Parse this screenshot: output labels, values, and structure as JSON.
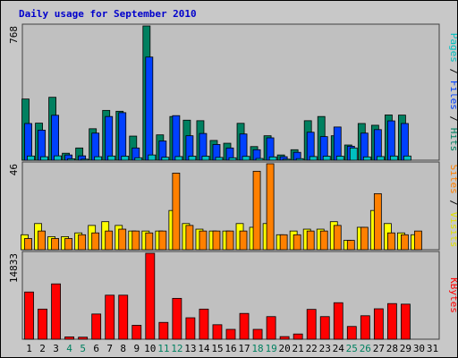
{
  "title": "Daily usage for September 2010",
  "legend": {
    "top": [
      {
        "text": "Pages",
        "color": "#00c0c0"
      },
      {
        "text": " / ",
        "color": "#000000"
      },
      {
        "text": "Files",
        "color": "#0040ff"
      },
      {
        "text": " / ",
        "color": "#000000"
      },
      {
        "text": "Hits",
        "color": "#008060"
      }
    ],
    "middle": [
      {
        "text": "Sites",
        "color": "#ff8000"
      },
      {
        "text": " / ",
        "color": "#000000"
      },
      {
        "text": "Visits",
        "color": "#e0e000"
      }
    ],
    "bottom": [
      {
        "text": "KBytes",
        "color": "#ff0000"
      }
    ]
  },
  "colors": {
    "hits": "#008060",
    "files": "#0040ff",
    "pages": "#00c0c0",
    "visits": "#ffff00",
    "sites": "#ff8000",
    "kbytes": "#ff0000",
    "weekday_label": "#000000",
    "weekend_label": "#008060",
    "plot_bg": "#c0c0c0",
    "frame_bg": "#c8c8c8"
  },
  "chart_data": [
    {
      "type": "bar",
      "panel": "hits-files-pages",
      "ymax_label": "768",
      "ylim": [
        0,
        768
      ],
      "categories": [
        "1",
        "2",
        "3",
        "4",
        "5",
        "6",
        "7",
        "8",
        "9",
        "10",
        "11",
        "12",
        "13",
        "14",
        "15",
        "16",
        "17",
        "18",
        "19",
        "20",
        "21",
        "22",
        "23",
        "24",
        "25",
        "26",
        "27",
        "28",
        "29",
        "30",
        "31"
      ],
      "weekend": [
        "4",
        "5",
        "11",
        "12",
        "18",
        "19",
        "25",
        "26"
      ],
      "series": [
        {
          "name": "Hits",
          "values": [
            350,
            212,
            360,
            40,
            70,
            180,
            285,
            280,
            138,
            768,
            145,
            250,
            229,
            226,
            113,
            97,
            211,
            78,
            140,
            30,
            60,
            226,
            250,
            140,
            87,
            210,
            200,
            259,
            258,
            0,
            0
          ]
        },
        {
          "name": "Files",
          "values": [
            210,
            172,
            257,
            30,
            25,
            155,
            250,
            272,
            70,
            590,
            110,
            255,
            140,
            153,
            90,
            70,
            150,
            60,
            128,
            20,
            45,
            160,
            135,
            190,
            80,
            155,
            175,
            225,
            210,
            0,
            0
          ]
        },
        {
          "name": "Pages",
          "values": [
            24,
            20,
            25,
            8,
            6,
            20,
            24,
            23,
            14,
            30,
            17,
            21,
            23,
            23,
            16,
            14,
            22,
            10,
            19,
            6,
            9,
            21,
            23,
            23,
            70,
            19,
            21,
            24,
            24,
            0,
            0
          ]
        }
      ]
    },
    {
      "type": "bar",
      "panel": "visits-sites",
      "ymax_label": "46",
      "ylim": [
        0,
        46
      ],
      "categories": [
        "1",
        "2",
        "3",
        "4",
        "5",
        "6",
        "7",
        "8",
        "9",
        "10",
        "11",
        "12",
        "13",
        "14",
        "15",
        "16",
        "17",
        "18",
        "19",
        "20",
        "21",
        "22",
        "23",
        "24",
        "25",
        "26",
        "27",
        "28",
        "29",
        "30",
        "31"
      ],
      "series": [
        {
          "name": "Visits",
          "values": [
            8,
            14,
            7,
            7,
            9,
            13,
            15,
            13,
            10,
            10,
            10,
            21,
            14,
            11,
            10,
            10,
            14,
            12,
            14,
            8,
            10,
            11,
            11,
            15,
            5,
            12,
            21,
            14,
            9,
            8,
            0
          ]
        },
        {
          "name": "Sites",
          "values": [
            6,
            10,
            6,
            6,
            8,
            9,
            10,
            11,
            10,
            9,
            10,
            41,
            13,
            10,
            10,
            10,
            10,
            42,
            46,
            8,
            8,
            10,
            10,
            13,
            5,
            12,
            30,
            9,
            8,
            10,
            0
          ]
        }
      ]
    },
    {
      "type": "bar",
      "panel": "kbytes",
      "ymax_label": "14833",
      "ylim": [
        0,
        14833
      ],
      "categories": [
        "1",
        "2",
        "3",
        "4",
        "5",
        "6",
        "7",
        "8",
        "9",
        "10",
        "11",
        "12",
        "13",
        "14",
        "15",
        "16",
        "17",
        "18",
        "19",
        "20",
        "21",
        "22",
        "23",
        "24",
        "25",
        "26",
        "27",
        "28",
        "29",
        "30",
        "31"
      ],
      "series": [
        {
          "name": "KBytes",
          "values": [
            8150,
            5200,
            9550,
            400,
            350,
            4350,
            7600,
            7600,
            2400,
            14833,
            2900,
            7050,
            3700,
            5200,
            2500,
            1700,
            4450,
            1700,
            3900,
            450,
            900,
            5150,
            3900,
            6300,
            2200,
            4050,
            5250,
            6150,
            6050,
            0,
            0
          ]
        }
      ]
    }
  ]
}
